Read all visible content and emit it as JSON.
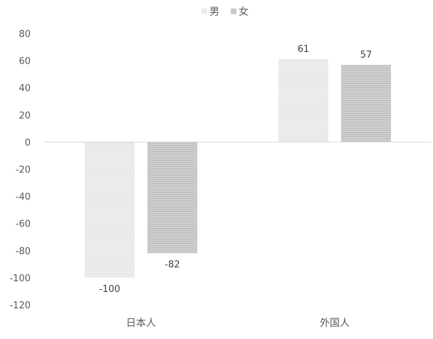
{
  "chart_data": {
    "type": "bar",
    "categories": [
      "日本人",
      "外国人"
    ],
    "series": [
      {
        "name": "男",
        "values": [
          -100,
          61
        ],
        "color": "#e6e6e6",
        "stripe": "#f4f4f4"
      },
      {
        "name": "女",
        "values": [
          -82,
          57
        ],
        "color": "#c2c2c2",
        "stripe": "#d6d6d6"
      }
    ],
    "data_labels": [
      [
        "-100",
        "61"
      ],
      [
        "-82",
        "57"
      ]
    ],
    "yticks": [
      80,
      60,
      40,
      20,
      0,
      -20,
      -40,
      -60,
      -80,
      -100,
      -120
    ],
    "ylim": [
      -120,
      80
    ],
    "legend": "top-center",
    "grid": false,
    "title": "",
    "xlabel": "",
    "ylabel": ""
  }
}
